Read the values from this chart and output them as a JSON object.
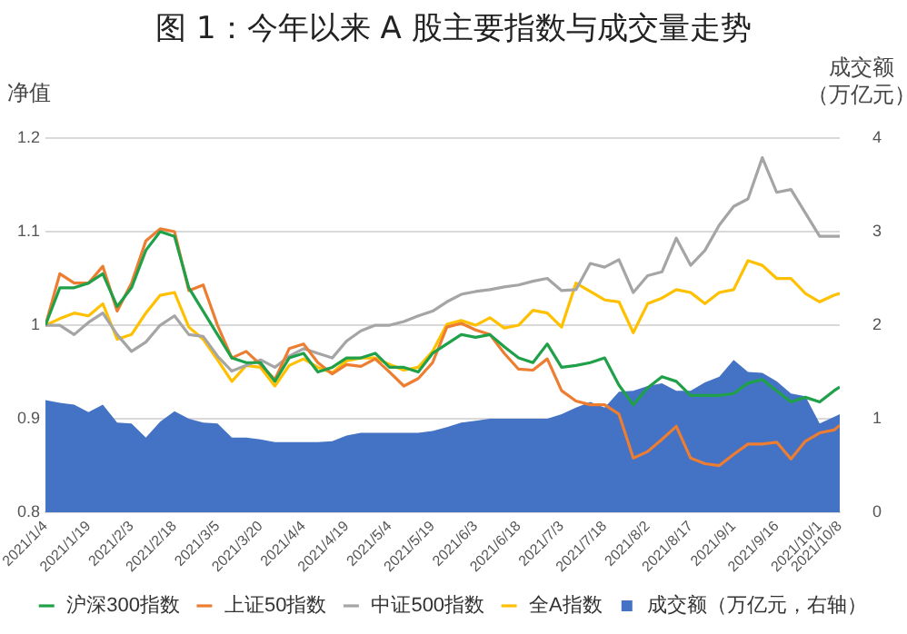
{
  "chart_data": {
    "type": "line",
    "title": "图 1：今年以来 A 股主要指数与成交量走势",
    "ylabel": "净值",
    "y2label": "成交额（万亿元）",
    "x": [
      "2021-01-04",
      "2021-01-09",
      "2021-01-14",
      "2021-01-19",
      "2021-01-24",
      "2021-01-29",
      "2021-02-03",
      "2021-02-08",
      "2021-02-13",
      "2021-02-18",
      "2021-02-23",
      "2021-02-28",
      "2021-03-05",
      "2021-03-10",
      "2021-03-15",
      "2021-03-20",
      "2021-03-25",
      "2021-03-30",
      "2021-04-04",
      "2021-04-09",
      "2021-04-14",
      "2021-04-19",
      "2021-04-24",
      "2021-04-29",
      "2021-05-04",
      "2021-05-09",
      "2021-05-14",
      "2021-05-19",
      "2021-05-24",
      "2021-05-29",
      "2021-06-03",
      "2021-06-08",
      "2021-06-13",
      "2021-06-18",
      "2021-06-23",
      "2021-06-28",
      "2021-07-03",
      "2021-07-08",
      "2021-07-13",
      "2021-07-18",
      "2021-07-23",
      "2021-07-28",
      "2021-08-02",
      "2021-08-07",
      "2021-08-12",
      "2021-08-17",
      "2021-08-22",
      "2021-08-27",
      "2021-09-01",
      "2021-09-06",
      "2021-09-11",
      "2021-09-16",
      "2021-09-21",
      "2021-09-26",
      "2021-10-01",
      "2021-10-06",
      "2021-10-08"
    ],
    "series": [
      {
        "name": "成交额（万亿元，右轴）",
        "type": "area",
        "axis": "y2",
        "color": "#4472c4",
        "values": [
          1.2,
          1.17,
          1.15,
          1.07,
          1.15,
          0.96,
          0.95,
          0.8,
          0.97,
          1.08,
          1.0,
          0.96,
          0.95,
          0.8,
          0.8,
          0.78,
          0.75,
          0.75,
          0.75,
          0.75,
          0.76,
          0.82,
          0.85,
          0.85,
          0.85,
          0.85,
          0.85,
          0.87,
          0.91,
          0.96,
          0.98,
          1.0,
          1.0,
          1.0,
          1.0,
          1.0,
          1.05,
          1.12,
          1.18,
          1.12,
          1.29,
          1.3,
          1.35,
          1.38,
          1.3,
          1.3,
          1.39,
          1.45,
          1.63,
          1.5,
          1.49,
          1.4,
          1.27,
          1.24,
          0.95,
          1.02,
          1.05
        ]
      },
      {
        "name": "沪深300指数",
        "color": "#1fa049",
        "values": [
          1.0,
          1.04,
          1.04,
          1.045,
          1.055,
          1.02,
          1.04,
          1.08,
          1.1,
          1.095,
          1.04,
          1.015,
          0.99,
          0.965,
          0.96,
          0.96,
          0.94,
          0.965,
          0.97,
          0.95,
          0.955,
          0.965,
          0.965,
          0.97,
          0.955,
          0.955,
          0.95,
          0.97,
          0.98,
          0.99,
          0.987,
          0.99,
          0.977,
          0.965,
          0.96,
          0.98,
          0.955,
          0.957,
          0.96,
          0.965,
          0.936,
          0.915,
          0.933,
          0.945,
          0.94,
          0.925,
          0.925,
          0.925,
          0.927,
          0.938,
          0.942,
          0.93,
          0.918,
          0.923,
          0.918,
          0.93,
          0.934
        ]
      },
      {
        "name": "上证50指数",
        "color": "#ed7d31",
        "values": [
          1.0,
          1.055,
          1.045,
          1.045,
          1.063,
          1.015,
          1.045,
          1.09,
          1.103,
          1.1,
          1.037,
          1.043,
          1.0,
          0.965,
          0.972,
          0.958,
          0.942,
          0.975,
          0.98,
          0.96,
          0.948,
          0.958,
          0.956,
          0.964,
          0.95,
          0.935,
          0.943,
          0.96,
          0.998,
          1.002,
          0.995,
          0.99,
          0.97,
          0.953,
          0.952,
          0.964,
          0.93,
          0.919,
          0.915,
          0.915,
          0.905,
          0.858,
          0.865,
          0.878,
          0.892,
          0.858,
          0.852,
          0.85,
          0.862,
          0.873,
          0.873,
          0.875,
          0.857,
          0.876,
          0.885,
          0.888,
          0.893
        ]
      },
      {
        "name": "中证500指数",
        "color": "#a5a5a5",
        "values": [
          1.0,
          1.0,
          0.99,
          1.003,
          1.013,
          0.99,
          0.972,
          0.982,
          1.0,
          1.01,
          0.99,
          0.988,
          0.967,
          0.951,
          0.957,
          0.963,
          0.955,
          0.967,
          0.975,
          0.97,
          0.965,
          0.983,
          0.994,
          1.0,
          1.0,
          1.004,
          1.01,
          1.015,
          1.025,
          1.033,
          1.036,
          1.038,
          1.041,
          1.043,
          1.047,
          1.05,
          1.037,
          1.038,
          1.066,
          1.062,
          1.07,
          1.035,
          1.053,
          1.057,
          1.093,
          1.064,
          1.08,
          1.107,
          1.127,
          1.135,
          1.179,
          1.142,
          1.145,
          1.12,
          1.095,
          1.095,
          1.095
        ]
      },
      {
        "name": "全A指数",
        "color": "#ffc000",
        "values": [
          1.0,
          1.007,
          1.013,
          1.01,
          1.023,
          0.985,
          0.99,
          1.013,
          1.032,
          1.035,
          0.998,
          0.985,
          0.963,
          0.94,
          0.957,
          0.955,
          0.935,
          0.957,
          0.964,
          0.955,
          0.949,
          0.962,
          0.965,
          0.965,
          0.958,
          0.952,
          0.955,
          0.972,
          1.001,
          1.005,
          1.0,
          1.008,
          0.997,
          1.0,
          1.016,
          1.013,
          0.998,
          1.045,
          1.036,
          1.027,
          1.025,
          0.992,
          1.023,
          1.029,
          1.038,
          1.035,
          1.023,
          1.035,
          1.038,
          1.069,
          1.064,
          1.05,
          1.05,
          1.034,
          1.025,
          1.032,
          1.034
        ]
      }
    ],
    "xlim": [
      "2021-01-04",
      "2021-10-08"
    ],
    "xticks": [
      {
        "value": "2021-01-04",
        "label": "2021/1/4"
      },
      {
        "value": "2021-01-19",
        "label": "2021/1/19"
      },
      {
        "value": "2021-02-03",
        "label": "2021/2/3"
      },
      {
        "value": "2021-02-18",
        "label": "2021/2/18"
      },
      {
        "value": "2021-03-05",
        "label": "2021/3/5"
      },
      {
        "value": "2021-03-20",
        "label": "2021/3/20"
      },
      {
        "value": "2021-04-04",
        "label": "2021/4/4"
      },
      {
        "value": "2021-04-19",
        "label": "2021/4/19"
      },
      {
        "value": "2021-05-04",
        "label": "2021/5/4"
      },
      {
        "value": "2021-05-19",
        "label": "2021/5/19"
      },
      {
        "value": "2021-06-03",
        "label": "2021/6/3"
      },
      {
        "value": "2021-06-18",
        "label": "2021/6/18"
      },
      {
        "value": "2021-07-03",
        "label": "2021/7/3"
      },
      {
        "value": "2021-07-18",
        "label": "2021/7/18"
      },
      {
        "value": "2021-08-02",
        "label": "2021/8/2"
      },
      {
        "value": "2021-08-17",
        "label": "2021/8/17"
      },
      {
        "value": "2021-09-01",
        "label": "2021/9/1"
      },
      {
        "value": "2021-09-16",
        "label": "2021/9/16"
      },
      {
        "value": "2021-10-01",
        "label": "2021/10/1"
      },
      {
        "value": "2021-10-08",
        "label": "2021/10/8"
      }
    ],
    "ylim": [
      0.8,
      1.2
    ],
    "yticks": [
      0.8,
      0.9,
      1,
      1.1,
      1.2
    ],
    "y2lim": [
      0,
      4
    ],
    "y2ticks": [
      0,
      1,
      2,
      3,
      4
    ],
    "grid": "y",
    "legend": "bottom",
    "marker": "none",
    "line_style": "solid"
  }
}
